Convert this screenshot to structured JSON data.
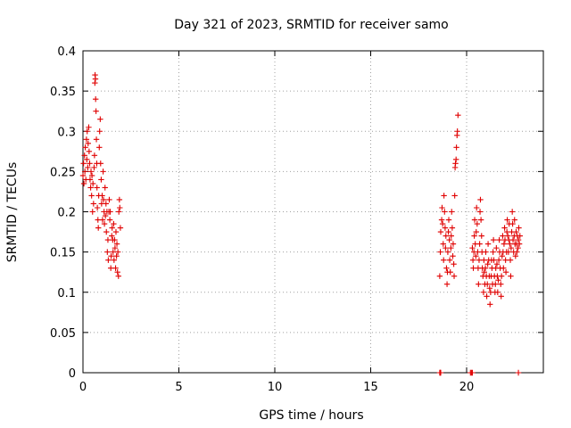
{
  "chart_data": {
    "type": "scatter",
    "title": "Day 321 of 2023, SRMTID for receiver samo",
    "xlabel": "GPS time / hours",
    "ylabel": "SRMTID / TECUs",
    "xlim": [
      0,
      24
    ],
    "ylim": [
      0,
      0.4
    ],
    "xticks": [
      0,
      5,
      10,
      15,
      20
    ],
    "xtick_labels": [
      "0",
      "5",
      "10",
      "15",
      "20"
    ],
    "yticks": [
      0,
      0.05,
      0.1,
      0.15,
      0.2,
      0.25,
      0.3,
      0.35,
      0.4
    ],
    "ytick_labels": [
      "0",
      "0.05",
      "0.1",
      "0.15",
      "0.2",
      "0.25",
      "0.3",
      "0.35",
      "0.4"
    ],
    "grid": true,
    "marker": "plus",
    "color": "#e00000",
    "series": [
      {
        "name": "SRMTID",
        "points": [
          [
            0.0,
            0.245
          ],
          [
            0.03,
            0.26
          ],
          [
            0.05,
            0.235
          ],
          [
            0.08,
            0.27
          ],
          [
            0.1,
            0.25
          ],
          [
            0.12,
            0.28
          ],
          [
            0.15,
            0.24
          ],
          [
            0.18,
            0.29
          ],
          [
            0.2,
            0.265
          ],
          [
            0.22,
            0.3
          ],
          [
            0.25,
            0.255
          ],
          [
            0.27,
            0.285
          ],
          [
            0.3,
            0.305
          ],
          [
            0.32,
            0.275
          ],
          [
            0.35,
            0.26
          ],
          [
            0.37,
            0.24
          ],
          [
            0.4,
            0.23
          ],
          [
            0.42,
            0.25
          ],
          [
            0.45,
            0.22
          ],
          [
            0.47,
            0.245
          ],
          [
            0.5,
            0.2
          ],
          [
            0.52,
            0.235
          ],
          [
            0.55,
            0.21
          ],
          [
            0.58,
            0.255
          ],
          [
            0.6,
            0.27
          ],
          [
            0.62,
            0.36
          ],
          [
            0.63,
            0.37
          ],
          [
            0.65,
            0.365
          ],
          [
            0.66,
            0.34
          ],
          [
            0.68,
            0.325
          ],
          [
            0.7,
            0.29
          ],
          [
            0.72,
            0.26
          ],
          [
            0.73,
            0.23
          ],
          [
            0.75,
            0.205
          ],
          [
            0.78,
            0.19
          ],
          [
            0.8,
            0.18
          ],
          [
            0.82,
            0.22
          ],
          [
            0.85,
            0.28
          ],
          [
            0.87,
            0.3
          ],
          [
            0.9,
            0.315
          ],
          [
            0.92,
            0.26
          ],
          [
            0.95,
            0.24
          ],
          [
            0.97,
            0.21
          ],
          [
            1.0,
            0.22
          ],
          [
            1.02,
            0.19
          ],
          [
            1.05,
            0.25
          ],
          [
            1.07,
            0.215
          ],
          [
            1.1,
            0.2
          ],
          [
            1.12,
            0.185
          ],
          [
            1.15,
            0.23
          ],
          [
            1.17,
            0.195
          ],
          [
            1.2,
            0.21
          ],
          [
            1.22,
            0.175
          ],
          [
            1.25,
            0.2
          ],
          [
            1.27,
            0.15
          ],
          [
            1.3,
            0.165
          ],
          [
            1.32,
            0.14
          ],
          [
            1.35,
            0.2
          ],
          [
            1.37,
            0.215
          ],
          [
            1.4,
            0.19
          ],
          [
            1.42,
            0.2
          ],
          [
            1.45,
            0.13
          ],
          [
            1.47,
            0.145
          ],
          [
            1.5,
            0.17
          ],
          [
            1.52,
            0.18
          ],
          [
            1.55,
            0.165
          ],
          [
            1.57,
            0.15
          ],
          [
            1.6,
            0.185
          ],
          [
            1.62,
            0.14
          ],
          [
            1.65,
            0.165
          ],
          [
            1.67,
            0.155
          ],
          [
            1.7,
            0.13
          ],
          [
            1.72,
            0.175
          ],
          [
            1.75,
            0.145
          ],
          [
            1.77,
            0.16
          ],
          [
            1.8,
            0.125
          ],
          [
            1.82,
            0.15
          ],
          [
            1.85,
            0.12
          ],
          [
            1.87,
            0.2
          ],
          [
            1.9,
            0.215
          ],
          [
            1.92,
            0.205
          ],
          [
            1.95,
            0.18
          ],
          [
            18.6,
            0.12
          ],
          [
            18.63,
            0.15
          ],
          [
            18.65,
            0.175
          ],
          [
            18.7,
            0.19
          ],
          [
            18.72,
            0.205
          ],
          [
            18.75,
            0.185
          ],
          [
            18.78,
            0.16
          ],
          [
            18.8,
            0.14
          ],
          [
            18.82,
            0.22
          ],
          [
            18.85,
            0.2
          ],
          [
            18.88,
            0.18
          ],
          [
            18.9,
            0.155
          ],
          [
            18.92,
            0.17
          ],
          [
            18.95,
            0.13
          ],
          [
            18.98,
            0.11
          ],
          [
            19.0,
            0.125
          ],
          [
            19.02,
            0.15
          ],
          [
            19.05,
            0.175
          ],
          [
            19.07,
            0.19
          ],
          [
            19.1,
            0.165
          ],
          [
            19.12,
            0.14
          ],
          [
            19.15,
            0.125
          ],
          [
            19.18,
            0.155
          ],
          [
            19.2,
            0.17
          ],
          [
            19.22,
            0.2
          ],
          [
            19.25,
            0.18
          ],
          [
            19.28,
            0.145
          ],
          [
            19.3,
            0.16
          ],
          [
            19.33,
            0.135
          ],
          [
            19.35,
            0.12
          ],
          [
            19.38,
            0.22
          ],
          [
            19.4,
            0.255
          ],
          [
            19.42,
            0.26
          ],
          [
            19.45,
            0.265
          ],
          [
            19.47,
            0.28
          ],
          [
            19.5,
            0.295
          ],
          [
            19.52,
            0.3
          ],
          [
            19.55,
            0.32
          ],
          [
            20.3,
            0.155
          ],
          [
            20.33,
            0.14
          ],
          [
            20.35,
            0.13
          ],
          [
            20.38,
            0.15
          ],
          [
            20.4,
            0.17
          ],
          [
            20.42,
            0.19
          ],
          [
            20.45,
            0.16
          ],
          [
            20.48,
            0.145
          ],
          [
            20.5,
            0.175
          ],
          [
            20.52,
            0.205
          ],
          [
            20.55,
            0.185
          ],
          [
            20.58,
            0.15
          ],
          [
            20.6,
            0.13
          ],
          [
            20.62,
            0.11
          ],
          [
            20.65,
            0.14
          ],
          [
            20.68,
            0.16
          ],
          [
            20.7,
            0.2
          ],
          [
            20.72,
            0.215
          ],
          [
            20.75,
            0.19
          ],
          [
            20.78,
            0.17
          ],
          [
            20.8,
            0.15
          ],
          [
            20.82,
            0.13
          ],
          [
            20.85,
            0.12
          ],
          [
            20.88,
            0.1
          ],
          [
            20.9,
            0.14
          ],
          [
            20.92,
            0.125
          ],
          [
            20.95,
            0.11
          ],
          [
            20.98,
            0.13
          ],
          [
            21.0,
            0.15
          ],
          [
            21.03,
            0.12
          ],
          [
            21.05,
            0.095
          ],
          [
            21.08,
            0.11
          ],
          [
            21.1,
            0.135
          ],
          [
            21.12,
            0.16
          ],
          [
            21.15,
            0.14
          ],
          [
            21.18,
            0.12
          ],
          [
            21.2,
            0.105
          ],
          [
            21.22,
            0.085
          ],
          [
            21.25,
            0.1
          ],
          [
            21.28,
            0.12
          ],
          [
            21.3,
            0.14
          ],
          [
            21.32,
            0.13
          ],
          [
            21.35,
            0.11
          ],
          [
            21.38,
            0.15
          ],
          [
            21.4,
            0.165
          ],
          [
            21.42,
            0.14
          ],
          [
            21.45,
            0.12
          ],
          [
            21.48,
            0.1
          ],
          [
            21.5,
            0.11
          ],
          [
            21.52,
            0.13
          ],
          [
            21.55,
            0.155
          ],
          [
            21.58,
            0.135
          ],
          [
            21.6,
            0.12
          ],
          [
            21.62,
            0.1
          ],
          [
            21.65,
            0.115
          ],
          [
            21.68,
            0.14
          ],
          [
            21.7,
            0.165
          ],
          [
            21.72,
            0.15
          ],
          [
            21.75,
            0.13
          ],
          [
            21.78,
            0.11
          ],
          [
            21.8,
            0.095
          ],
          [
            21.82,
            0.12
          ],
          [
            21.85,
            0.145
          ],
          [
            21.88,
            0.17
          ],
          [
            21.9,
            0.15
          ],
          [
            21.92,
            0.13
          ],
          [
            21.95,
            0.16
          ],
          [
            21.98,
            0.18
          ],
          [
            22.0,
            0.165
          ],
          [
            22.03,
            0.14
          ],
          [
            22.05,
            0.125
          ],
          [
            22.08,
            0.15
          ],
          [
            22.1,
            0.175
          ],
          [
            22.12,
            0.19
          ],
          [
            22.15,
            0.17
          ],
          [
            22.18,
            0.15
          ],
          [
            22.2,
            0.165
          ],
          [
            22.22,
            0.185
          ],
          [
            22.25,
            0.16
          ],
          [
            22.28,
            0.14
          ],
          [
            22.3,
            0.12
          ],
          [
            22.32,
            0.155
          ],
          [
            22.35,
            0.175
          ],
          [
            22.38,
            0.2
          ],
          [
            22.4,
            0.185
          ],
          [
            22.42,
            0.165
          ],
          [
            22.45,
            0.15
          ],
          [
            22.48,
            0.17
          ],
          [
            22.5,
            0.19
          ],
          [
            22.52,
            0.16
          ],
          [
            22.55,
            0.145
          ],
          [
            22.58,
            0.175
          ],
          [
            22.6,
            0.16
          ],
          [
            22.62,
            0.15
          ],
          [
            22.65,
            0.17
          ],
          [
            22.68,
            0.155
          ],
          [
            22.7,
            0.165
          ],
          [
            22.72,
            0.18
          ],
          [
            22.75,
            0.16
          ],
          [
            22.78,
            0.17
          ],
          [
            18.6,
            0.0
          ],
          [
            18.63,
            0.0
          ],
          [
            18.65,
            0.0
          ],
          [
            20.2,
            0.0
          ],
          [
            20.25,
            0.0
          ],
          [
            20.3,
            0.0
          ],
          [
            22.7,
            0.0
          ]
        ]
      }
    ]
  }
}
